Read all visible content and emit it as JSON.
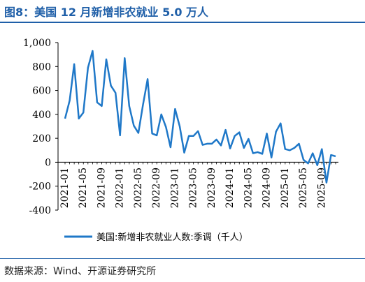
{
  "figure": {
    "title": "图8：美国 12 月新增非农就业 5.0 万人",
    "source": "数据来源：Wind、开源证券研究所"
  },
  "colors": {
    "accent": "#1f5fa8",
    "line": "#1f78c8"
  },
  "chart_data": {
    "type": "line",
    "title": "",
    "xlabel": "",
    "ylabel": "",
    "ylim": [
      -400,
      1000
    ],
    "yticks": [
      -400,
      -200,
      0,
      200,
      400,
      600,
      800,
      1000
    ],
    "ytick_labels": [
      "-400",
      "-200",
      "0",
      "200",
      "400",
      "600",
      "800",
      "1,000"
    ],
    "xtick_labels": [
      "2021-01",
      "2021-05",
      "2021-09",
      "2022-01",
      "2022-05",
      "2022-09",
      "2023-01",
      "2023-05",
      "2023-09",
      "2024-01",
      "2024-05",
      "2024-09",
      "2025-01",
      "2025-05",
      "2025-09"
    ],
    "grid": false,
    "legend": "bottom",
    "x": [
      "2021-01",
      "2021-02",
      "2021-03",
      "2021-04",
      "2021-05",
      "2021-06",
      "2021-07",
      "2021-08",
      "2021-09",
      "2021-10",
      "2021-11",
      "2021-12",
      "2022-01",
      "2022-02",
      "2022-03",
      "2022-04",
      "2022-05",
      "2022-06",
      "2022-07",
      "2022-08",
      "2022-09",
      "2022-10",
      "2022-11",
      "2022-12",
      "2023-01",
      "2023-02",
      "2023-03",
      "2023-04",
      "2023-05",
      "2023-06",
      "2023-07",
      "2023-08",
      "2023-09",
      "2023-10",
      "2023-11",
      "2023-12",
      "2024-01",
      "2024-02",
      "2024-03",
      "2024-04",
      "2024-05",
      "2024-06",
      "2024-07",
      "2024-08",
      "2024-09",
      "2024-10",
      "2024-11",
      "2024-12",
      "2025-01",
      "2025-02",
      "2025-03",
      "2025-04",
      "2025-05",
      "2025-06",
      "2025-07",
      "2025-08",
      "2025-09",
      "2025-10",
      "2025-11",
      "2025-12"
    ],
    "series": [
      {
        "name": "美国:新增非农就业人数:季调（千人）",
        "values": [
          365,
          515,
          820,
          365,
          415,
          790,
          930,
          500,
          470,
          860,
          640,
          580,
          225,
          870,
          470,
          305,
          245,
          480,
          695,
          240,
          225,
          400,
          295,
          125,
          445,
          300,
          80,
          220,
          220,
          260,
          145,
          155,
          155,
          190,
          140,
          270,
          115,
          220,
          250,
          120,
          195,
          75,
          85,
          70,
          240,
          40,
          255,
          325,
          110,
          100,
          120,
          155,
          20,
          -10,
          75,
          -25,
          110,
          -170,
          60,
          50
        ]
      }
    ]
  }
}
